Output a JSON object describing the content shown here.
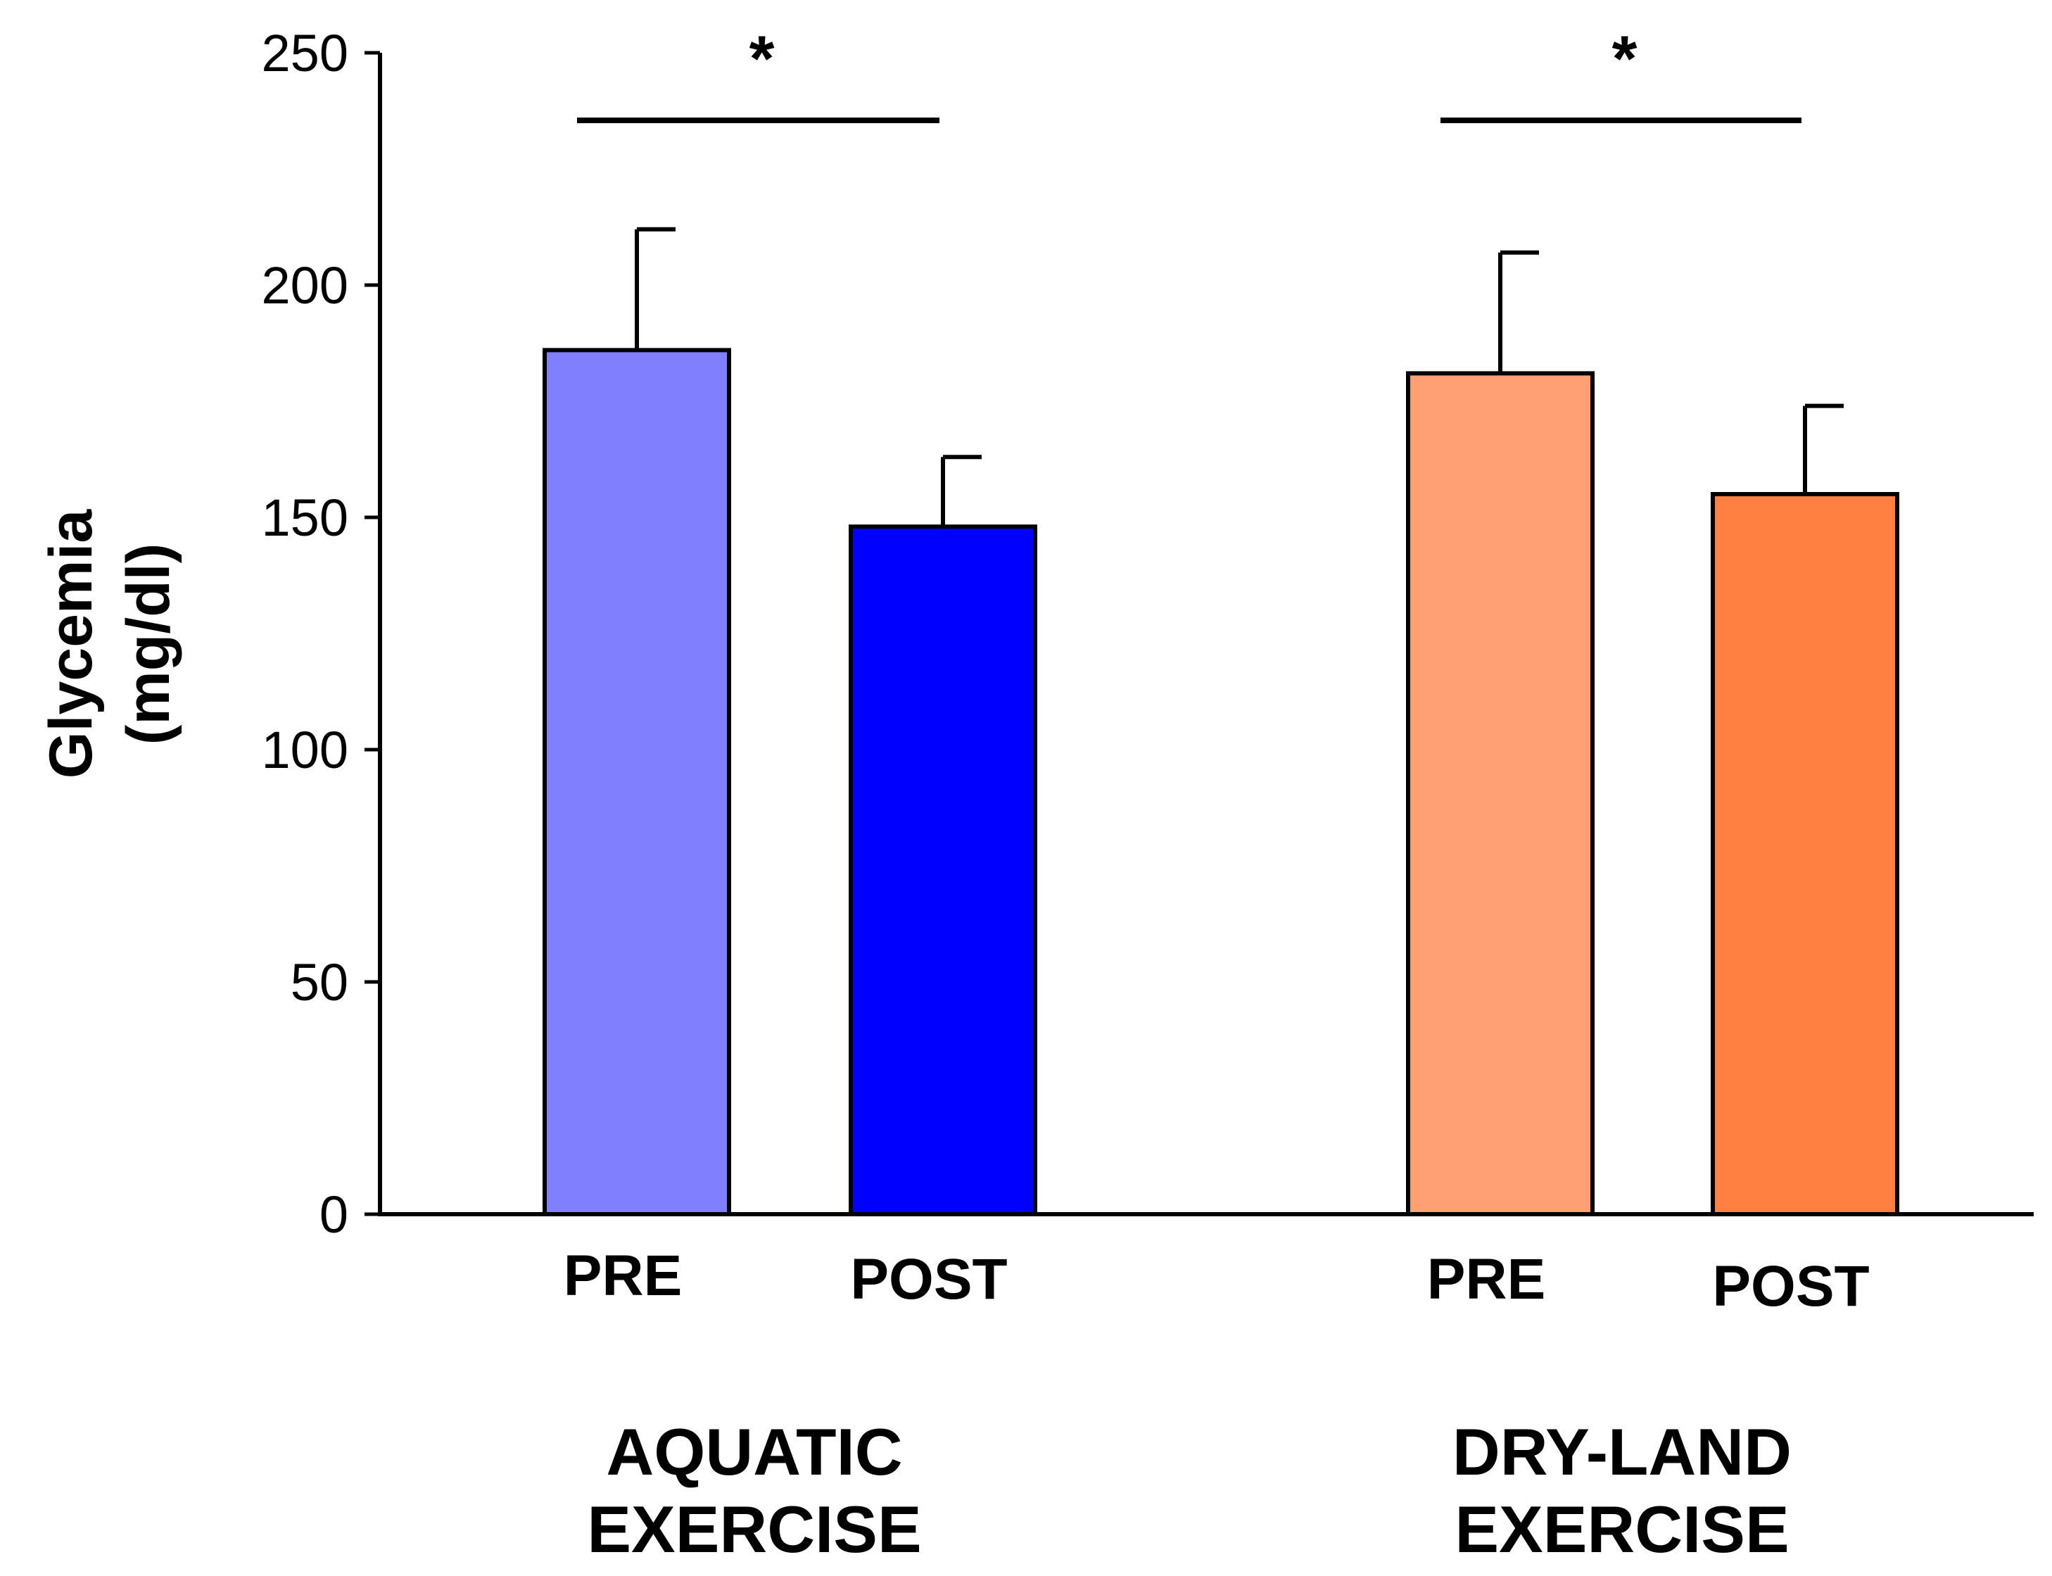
{
  "chart_data": {
    "type": "bar",
    "title": "",
    "ylabel": "Glycemia (mg/dl)",
    "ylabel_lines": [
      "Glycemia",
      "(mg/dl)"
    ],
    "xlabel": "",
    "ylim": [
      0,
      250
    ],
    "yticks": [
      0,
      50,
      100,
      150,
      200,
      250
    ],
    "grid": false,
    "groups": [
      {
        "label_lines": [
          "AQUATIC",
          "EXERCISE"
        ],
        "bars": [
          {
            "label": "PRE",
            "value": 186,
            "error": 26,
            "color": "#8080FF"
          },
          {
            "label": "POST",
            "value": 148,
            "error": 15,
            "color": "#0000FF"
          }
        ],
        "significance": "*"
      },
      {
        "label_lines": [
          "DRY-LAND",
          "EXERCISE"
        ],
        "bars": [
          {
            "label": "PRE",
            "value": 181,
            "error": 26,
            "color": "#FF9F73"
          },
          {
            "label": "POST",
            "value": 155,
            "error": 19,
            "color": "#FF8040"
          }
        ],
        "significance": "*"
      }
    ]
  }
}
